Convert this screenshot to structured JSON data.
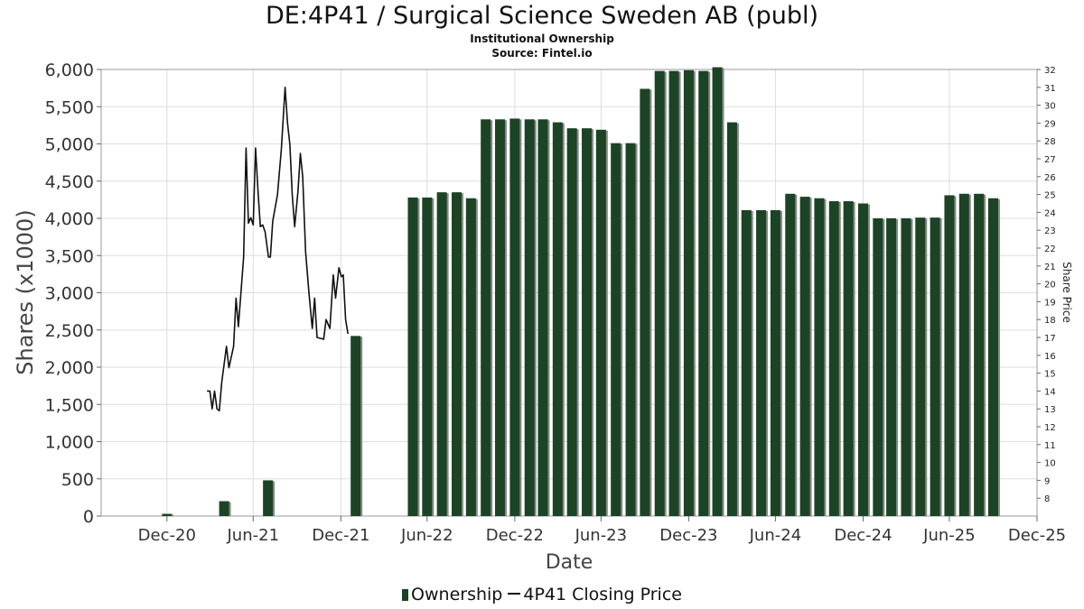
{
  "header": {
    "title": "DE:4P41 / Surgical Science Sweden AB (publ)",
    "subtitle": "Institutional Ownership",
    "source": "Source: Fintel.io"
  },
  "legend": {
    "ownership": "Ownership",
    "price": "4P41 Closing Price"
  },
  "colors": {
    "bar": "#1b4424",
    "bar_shadow": "#8a8a8a",
    "price_line": "#111111",
    "grid": "#dddddd"
  },
  "chart_data": {
    "type": "bar",
    "xlabel": "Date",
    "ylabel": "Shares (x1000)",
    "y2label": "Share Price",
    "x_ticks": [
      "Dec-20",
      "Jun-21",
      "Dec-21",
      "Jun-22",
      "Dec-22",
      "Jun-23",
      "Dec-23",
      "Jun-24",
      "Dec-24",
      "Jun-25",
      "Dec-25"
    ],
    "y_ticks": [
      "0",
      "500",
      "1,000",
      "1,500",
      "2,000",
      "2,500",
      "3,000",
      "3,500",
      "4,000",
      "4,500",
      "5,000",
      "5,500",
      "6,000"
    ],
    "y2_ticks": [
      "8",
      "9",
      "10",
      "11",
      "12",
      "13",
      "14",
      "15",
      "16",
      "17",
      "18",
      "19",
      "20",
      "21",
      "22",
      "23",
      "24",
      "25",
      "26",
      "27",
      "28",
      "29",
      "30",
      "31",
      "32"
    ],
    "ylim": [
      0,
      6000
    ],
    "y2lim": [
      7,
      32
    ],
    "xlim": [
      "2020-08-15",
      "2025-12-31"
    ],
    "grid": true,
    "legend_position": "bottom",
    "series": [
      {
        "name": "Ownership",
        "kind": "bar",
        "points": [
          {
            "date": "2020-12-31",
            "value": 30
          },
          {
            "date": "2021-04-30",
            "value": 200
          },
          {
            "date": "2021-07-31",
            "value": 480
          },
          {
            "date": "2022-01-31",
            "value": 2420
          },
          {
            "date": "2022-05-31",
            "value": 4280
          },
          {
            "date": "2022-06-30",
            "value": 4280
          },
          {
            "date": "2022-07-31",
            "value": 4350
          },
          {
            "date": "2022-08-31",
            "value": 4350
          },
          {
            "date": "2022-09-30",
            "value": 4270
          },
          {
            "date": "2022-10-31",
            "value": 5330
          },
          {
            "date": "2022-11-30",
            "value": 5330
          },
          {
            "date": "2022-12-31",
            "value": 5340
          },
          {
            "date": "2023-01-31",
            "value": 5330
          },
          {
            "date": "2023-02-28",
            "value": 5330
          },
          {
            "date": "2023-03-31",
            "value": 5290
          },
          {
            "date": "2023-04-30",
            "value": 5210
          },
          {
            "date": "2023-05-31",
            "value": 5210
          },
          {
            "date": "2023-06-30",
            "value": 5190
          },
          {
            "date": "2023-07-31",
            "value": 5010
          },
          {
            "date": "2023-08-31",
            "value": 5010
          },
          {
            "date": "2023-09-30",
            "value": 5740
          },
          {
            "date": "2023-10-31",
            "value": 5980
          },
          {
            "date": "2023-11-30",
            "value": 5980
          },
          {
            "date": "2023-12-31",
            "value": 5990
          },
          {
            "date": "2024-01-31",
            "value": 5980
          },
          {
            "date": "2024-02-29",
            "value": 6030
          },
          {
            "date": "2024-03-31",
            "value": 5290
          },
          {
            "date": "2024-04-30",
            "value": 4110
          },
          {
            "date": "2024-05-31",
            "value": 4110
          },
          {
            "date": "2024-06-30",
            "value": 4110
          },
          {
            "date": "2024-07-31",
            "value": 4330
          },
          {
            "date": "2024-08-31",
            "value": 4290
          },
          {
            "date": "2024-09-30",
            "value": 4270
          },
          {
            "date": "2024-10-31",
            "value": 4230
          },
          {
            "date": "2024-11-30",
            "value": 4230
          },
          {
            "date": "2024-12-31",
            "value": 4200
          },
          {
            "date": "2025-01-31",
            "value": 4000
          },
          {
            "date": "2025-02-28",
            "value": 4000
          },
          {
            "date": "2025-03-31",
            "value": 4000
          },
          {
            "date": "2025-04-30",
            "value": 4010
          },
          {
            "date": "2025-05-31",
            "value": 4010
          },
          {
            "date": "2025-06-30",
            "value": 4310
          },
          {
            "date": "2025-07-31",
            "value": 4330
          },
          {
            "date": "2025-08-31",
            "value": 4330
          },
          {
            "date": "2025-09-30",
            "value": 4270
          }
        ]
      },
      {
        "name": "4P41 Closing Price",
        "kind": "line",
        "points": [
          {
            "date": "2021-03-25",
            "value": 14.0
          },
          {
            "date": "2021-03-31",
            "value": 14.0
          },
          {
            "date": "2021-04-05",
            "value": 13.0
          },
          {
            "date": "2021-04-10",
            "value": 14.0
          },
          {
            "date": "2021-04-15",
            "value": 13.0
          },
          {
            "date": "2021-04-20",
            "value": 12.9
          },
          {
            "date": "2021-04-25",
            "value": 14.5
          },
          {
            "date": "2021-05-05",
            "value": 16.5
          },
          {
            "date": "2021-05-10",
            "value": 15.3
          },
          {
            "date": "2021-05-20",
            "value": 16.5
          },
          {
            "date": "2021-05-25",
            "value": 19.2
          },
          {
            "date": "2021-05-30",
            "value": 17.6
          },
          {
            "date": "2021-06-10",
            "value": 21.5
          },
          {
            "date": "2021-06-15",
            "value": 27.6
          },
          {
            "date": "2021-06-20",
            "value": 23.4
          },
          {
            "date": "2021-06-25",
            "value": 23.7
          },
          {
            "date": "2021-06-30",
            "value": 23.3
          },
          {
            "date": "2021-07-05",
            "value": 27.6
          },
          {
            "date": "2021-07-10",
            "value": 25.3
          },
          {
            "date": "2021-07-15",
            "value": 23.2
          },
          {
            "date": "2021-07-20",
            "value": 23.3
          },
          {
            "date": "2021-07-25",
            "value": 22.9
          },
          {
            "date": "2021-08-01",
            "value": 21.5
          },
          {
            "date": "2021-08-05",
            "value": 21.5
          },
          {
            "date": "2021-08-10",
            "value": 23.5
          },
          {
            "date": "2021-08-20",
            "value": 25.0
          },
          {
            "date": "2021-08-28",
            "value": 27.5
          },
          {
            "date": "2021-09-05",
            "value": 31.0
          },
          {
            "date": "2021-09-10",
            "value": 29.0
          },
          {
            "date": "2021-09-15",
            "value": 27.8
          },
          {
            "date": "2021-09-20",
            "value": 25.0
          },
          {
            "date": "2021-09-25",
            "value": 23.2
          },
          {
            "date": "2021-10-02",
            "value": 25.2
          },
          {
            "date": "2021-10-07",
            "value": 27.3
          },
          {
            "date": "2021-10-12",
            "value": 26.0
          },
          {
            "date": "2021-10-18",
            "value": 21.8
          },
          {
            "date": "2021-10-25",
            "value": 19.5
          },
          {
            "date": "2021-11-01",
            "value": 17.5
          },
          {
            "date": "2021-11-06",
            "value": 19.2
          },
          {
            "date": "2021-11-11",
            "value": 17.0
          },
          {
            "date": "2021-11-25",
            "value": 16.9
          },
          {
            "date": "2021-11-30",
            "value": 18.0
          },
          {
            "date": "2021-12-08",
            "value": 17.5
          },
          {
            "date": "2021-12-15",
            "value": 20.5
          },
          {
            "date": "2021-12-20",
            "value": 19.2
          },
          {
            "date": "2021-12-27",
            "value": 20.9
          },
          {
            "date": "2022-01-01",
            "value": 20.4
          },
          {
            "date": "2022-01-05",
            "value": 20.5
          },
          {
            "date": "2022-01-10",
            "value": 18.0
          },
          {
            "date": "2022-01-15",
            "value": 17.2
          }
        ]
      }
    ]
  }
}
